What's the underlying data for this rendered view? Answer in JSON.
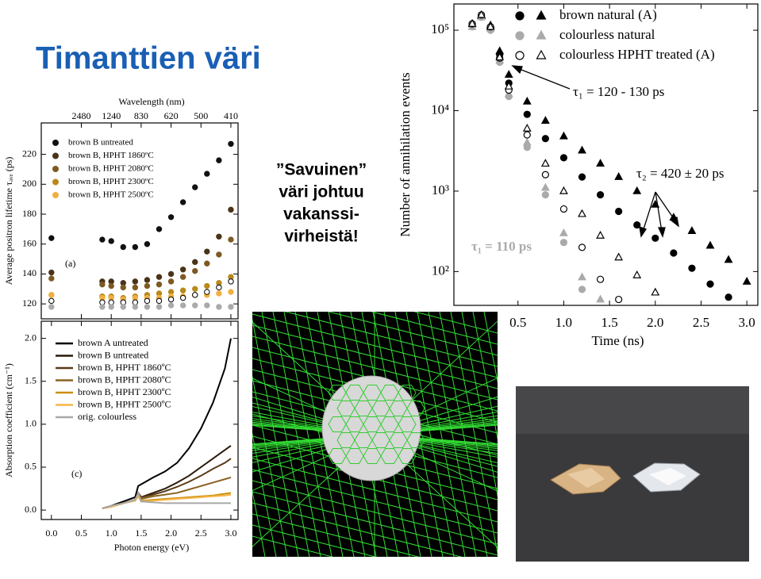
{
  "slide": {
    "title": "Timanttien väri",
    "text": [
      "”Savuinen”",
      "väri johtuu",
      "vakanssi-",
      "virheistä!"
    ]
  },
  "chart_data": [
    {
      "type": "scatter",
      "label": "(a)",
      "ylabel": "Average positron lifetime τₐᵥₑ (ps)",
      "x2label": "Wavelength (nm)",
      "x": [
        0.0,
        0.85,
        1.0,
        1.2,
        1.4,
        1.6,
        1.8,
        2.0,
        2.2,
        2.4,
        2.6,
        2.8,
        3.0
      ],
      "xlim": [
        -0.17,
        3.12
      ],
      "x2ticks": [
        {
          "value": 0.5,
          "label": "2480"
        },
        {
          "value": 1.0,
          "label": "1240"
        },
        {
          "value": 1.5,
          "label": "830"
        },
        {
          "value": 2.0,
          "label": "620"
        },
        {
          "value": 2.5,
          "label": "500"
        },
        {
          "value": 3.0,
          "label": "410"
        }
      ],
      "ylim": [
        110,
        241
      ],
      "yticks": [
        120,
        140,
        160,
        180,
        200,
        220
      ],
      "series": [
        {
          "name": "brown B untreated",
          "color": "#111111",
          "values": [
            164,
            163,
            162,
            158,
            158,
            160,
            170,
            178,
            188,
            198,
            207,
            216,
            227
          ]
        },
        {
          "name": "brown B, HPHT 1860ºC",
          "color": "#4a3318",
          "values": [
            141,
            135,
            135,
            134,
            135,
            136,
            138,
            140,
            143,
            148,
            155,
            165,
            183
          ]
        },
        {
          "name": "brown B, HPHT 2080ºC",
          "color": "#7d5a22",
          "values": [
            137,
            133,
            132,
            131,
            131,
            132,
            133,
            135,
            138,
            142,
            147,
            153,
            163
          ]
        },
        {
          "name": "brown B, HPHT 2300ºC",
          "color": "#b8891c",
          "values": [
            126,
            125,
            125,
            124,
            125,
            126,
            127,
            128,
            129,
            130,
            132,
            134,
            138
          ]
        },
        {
          "name": "brown B, HPHT 2500ºC",
          "color": "#f0b040",
          "values": [
            126,
            124,
            124,
            123,
            124,
            124,
            124,
            125,
            125,
            126,
            126,
            127,
            128
          ]
        },
        {
          "color": "#ffffff",
          "edgecolor": "#000000",
          "values": [
            122,
            121,
            121,
            121,
            121,
            122,
            122,
            123,
            124,
            126,
            128,
            131,
            135
          ]
        },
        {
          "color": "#aaaaaa",
          "values": [
            118,
            118,
            118,
            118,
            118,
            118,
            118,
            119,
            119,
            119,
            119,
            118,
            118
          ]
        }
      ]
    },
    {
      "type": "line",
      "label": "(c)",
      "ylabel": "Absorption coefficient (cm⁻¹)",
      "xlabel": "Photon energy (eV)",
      "x": [
        0.85,
        1.0,
        1.2,
        1.4,
        1.45,
        1.5,
        1.7,
        1.9,
        2.1,
        2.3,
        2.5,
        2.7,
        2.9,
        3.0
      ],
      "xlim": [
        -0.17,
        3.12
      ],
      "xticks": [
        {
          "value": 0,
          "label": "0.0"
        },
        0.5,
        {
          "value": 1,
          "label": "1.0"
        },
        1.5,
        {
          "value": 2,
          "label": "2.0"
        },
        2.5,
        {
          "value": 3,
          "label": "3.0"
        }
      ],
      "ylim": [
        -0.11,
        2.2
      ],
      "yticks": [
        {
          "value": 0,
          "label": "0.0"
        },
        0.5,
        {
          "value": 1,
          "label": "1.0"
        },
        1.5,
        {
          "value": 2,
          "label": "2.0"
        }
      ],
      "series": [
        {
          "name": "brown A untreated",
          "color": "#000000",
          "values": [
            0.02,
            0.05,
            0.1,
            0.15,
            0.28,
            0.3,
            0.38,
            0.45,
            0.55,
            0.72,
            0.95,
            1.25,
            1.65,
            2.0
          ]
        },
        {
          "name": "brown B untreated",
          "color": "#2a1a0a",
          "values": [
            0.02,
            0.04,
            0.08,
            0.12,
            0.2,
            0.15,
            0.2,
            0.25,
            0.32,
            0.4,
            0.5,
            0.6,
            0.7,
            0.75
          ]
        },
        {
          "name": "brown B, HPHT 1860ºC",
          "color": "#5a3a16",
          "values": [
            0.02,
            0.04,
            0.08,
            0.12,
            0.2,
            0.15,
            0.18,
            0.22,
            0.27,
            0.33,
            0.4,
            0.48,
            0.55,
            0.6
          ]
        },
        {
          "name": "brown B, HPHT 2080ºC",
          "color": "#8a6220",
          "values": [
            0.02,
            0.04,
            0.08,
            0.12,
            0.19,
            0.13,
            0.16,
            0.18,
            0.2,
            0.24,
            0.28,
            0.32,
            0.36,
            0.38
          ]
        },
        {
          "name": "brown B, HPHT 2300ºC",
          "color": "#c98f10",
          "values": [
            0.02,
            0.04,
            0.08,
            0.11,
            0.17,
            0.11,
            0.12,
            0.13,
            0.14,
            0.15,
            0.16,
            0.17,
            0.19,
            0.2
          ]
        },
        {
          "name": "brown B, HPHT 2500ºC",
          "color": "#f5b548",
          "values": [
            0.02,
            0.04,
            0.08,
            0.11,
            0.16,
            0.1,
            0.11,
            0.12,
            0.13,
            0.14,
            0.15,
            0.16,
            0.17,
            0.18
          ]
        },
        {
          "name": "orig. colourless",
          "color": "#a8a8a8",
          "values": [
            0.02,
            0.05,
            0.08,
            0.12,
            0.2,
            0.1,
            0.09,
            0.08,
            0.08,
            0.08,
            0.08,
            0.08,
            0.08,
            0.08
          ]
        }
      ]
    },
    {
      "type": "scatter",
      "log_y": true,
      "ylabel": "Number of annihilation events",
      "xlabel": "Time (ns)",
      "x": [
        0.0,
        0.1,
        0.2,
        0.3,
        0.4,
        0.6,
        0.8,
        1.0,
        1.2,
        1.4,
        1.6,
        1.8,
        2.0,
        2.2,
        2.4,
        2.6,
        2.8,
        3.0
      ],
      "xlim": [
        -0.2,
        3.12
      ],
      "xticks": [
        0.5,
        {
          "value": 1,
          "label": "1.0"
        },
        1.5,
        {
          "value": 2,
          "label": "2.0"
        },
        2.5,
        {
          "value": 3,
          "label": "3.0"
        }
      ],
      "ylim": [
        38,
        212000
      ],
      "yticks": [
        {
          "value": 100,
          "label": "10²"
        },
        {
          "value": 1000,
          "label": "10³"
        },
        {
          "value": 10000,
          "label": "10⁴"
        },
        {
          "value": 100000,
          "label": "10⁵"
        }
      ],
      "series": [
        {
          "name": "brown natural (A)",
          "color": "#000000",
          "filled": true,
          "values": [
            120000,
            150000,
            110000,
            50000,
            22000,
            9000,
            4500,
            2600,
            1500,
            900,
            560,
            380,
            260,
            170,
            110,
            70,
            48,
            null
          ],
          "values_alt": [
            120000,
            150000,
            115000,
            55000,
            28000,
            13000,
            7500,
            4800,
            3200,
            2200,
            1500,
            1000,
            680,
            470,
            320,
            210,
            140,
            75
          ]
        },
        {
          "name": "colourless natural",
          "color": "#aaaaaa",
          "filled": true,
          "values": [
            110000,
            145000,
            100000,
            40000,
            15000,
            3500,
            900,
            230,
            60,
            null,
            null,
            null,
            null,
            null,
            null,
            null,
            null,
            null
          ],
          "values_alt": [
            110000,
            145000,
            105000,
            42000,
            16000,
            4000,
            1100,
            300,
            85,
            45,
            null,
            null,
            null,
            null,
            null,
            null,
            null,
            null
          ]
        },
        {
          "name": "colourless HPHT treated (A)",
          "color": "#000000",
          "filled": false,
          "values": [
            120000,
            155000,
            110000,
            45000,
            18000,
            5000,
            1600,
            600,
            200,
            80,
            45,
            null,
            null,
            null,
            null,
            null,
            null,
            null
          ],
          "values_alt": [
            120000,
            155000,
            110000,
            46000,
            20000,
            6000,
            2200,
            1000,
            520,
            280,
            150,
            90,
            55,
            null,
            null,
            null,
            null,
            null
          ]
        }
      ],
      "annotations": [
        {
          "text": "τ₁ = 120 - 130 ps",
          "color": "#000000"
        },
        {
          "text": "τ₂ = 420 ± 20 ps",
          "color": "#000000"
        },
        {
          "text": "τ₁ = 110 ps",
          "color": "#aaaaaa"
        }
      ]
    }
  ]
}
